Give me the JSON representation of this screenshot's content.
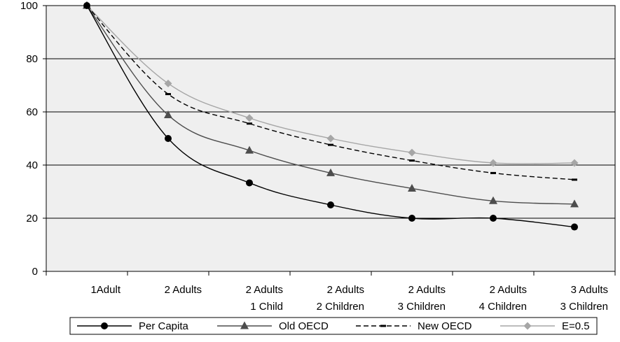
{
  "chart_data": {
    "type": "line",
    "title": "",
    "xlabel": "",
    "ylabel": "",
    "ylim": [
      0,
      100
    ],
    "yticks": [
      0,
      20,
      40,
      60,
      80,
      100
    ],
    "grid": true,
    "legend_position": "bottom",
    "categories": [
      [
        "1Adult"
      ],
      [
        "2 Adults"
      ],
      [
        "2 Adults",
        "1 Child"
      ],
      [
        "2 Adults",
        "2 Children"
      ],
      [
        "2 Adults",
        "3 Children"
      ],
      [
        "2 Adults",
        "4 Children"
      ],
      [
        "3 Adults",
        "3 Children"
      ]
    ],
    "series": [
      {
        "name": "Per Capita",
        "values": [
          100,
          50,
          33.3,
          25,
          20,
          20,
          16.7
        ],
        "color": "#000000",
        "line_style": "solid",
        "marker": "circle"
      },
      {
        "name": "Old OECD",
        "values": [
          100,
          58.8,
          45.5,
          37,
          31.2,
          26.5,
          25.3
        ],
        "color": "#4d4d4d",
        "line_style": "solid",
        "marker": "triangle"
      },
      {
        "name": "New OECD",
        "values": [
          100,
          66.7,
          55.6,
          47.6,
          41.7,
          37,
          34.5
        ],
        "color": "#000000",
        "line_style": "dashed",
        "marker": "dash"
      },
      {
        "name": "E=0.5",
        "values": [
          100,
          70.7,
          57.7,
          50,
          44.7,
          40.8,
          40.8
        ],
        "color": "#a6a6a6",
        "line_style": "solid",
        "marker": "diamond"
      }
    ],
    "plot_background": "#efefef"
  }
}
